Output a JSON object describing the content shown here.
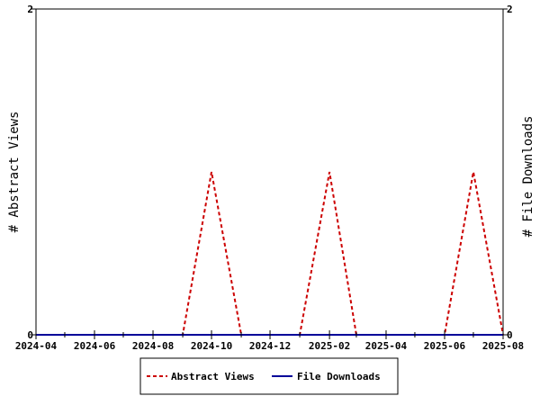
{
  "chart_data": {
    "type": "line",
    "x_axis": {
      "type": "date",
      "range": [
        "2024-04-01",
        "2025-08-01"
      ],
      "tick_labels": [
        "2024-04",
        "2024-06",
        "2024-08",
        "2024-10",
        "2024-12",
        "2025-02",
        "2025-04",
        "2025-06",
        "2025-08"
      ],
      "tick_dates": [
        "2024-04-01",
        "2024-06-01",
        "2024-08-01",
        "2024-10-01",
        "2024-12-01",
        "2025-02-01",
        "2025-04-01",
        "2025-06-01",
        "2025-08-01"
      ],
      "minor_tick_dates": [
        "2024-05-01",
        "2024-07-01",
        "2024-09-01",
        "2024-11-01",
        "2025-01-01",
        "2025-03-01",
        "2025-05-01",
        "2025-07-01"
      ]
    },
    "y_left": {
      "label": "# Abstract Views",
      "range": [
        0,
        2
      ],
      "tick_labels": [
        "0",
        "2"
      ]
    },
    "y_right": {
      "label": "# File Downloads",
      "range": [
        0,
        2
      ],
      "tick_labels": [
        "0",
        "2"
      ]
    },
    "grid": false,
    "legend": {
      "position": "bottom"
    },
    "x": [
      "2024-04-01",
      "2024-05-01",
      "2024-06-01",
      "2024-07-01",
      "2024-08-01",
      "2024-09-01",
      "2024-10-01",
      "2024-11-01",
      "2024-12-01",
      "2025-01-01",
      "2025-02-01",
      "2025-03-01",
      "2025-04-01",
      "2025-05-01",
      "2025-06-01",
      "2025-07-01",
      "2025-08-01"
    ],
    "series": [
      {
        "name": "Abstract Views",
        "color": "#cc0000",
        "style": "dashed",
        "axis": "left",
        "values": [
          0,
          0,
          0,
          0,
          0,
          0,
          1,
          0,
          0,
          0,
          1,
          0,
          0,
          0,
          0,
          1,
          0
        ]
      },
      {
        "name": "File Downloads",
        "color": "#000099",
        "style": "solid",
        "axis": "right",
        "values": [
          0,
          0,
          0,
          0,
          0,
          0,
          0,
          0,
          0,
          0,
          0,
          0,
          0,
          0,
          0,
          0,
          0
        ]
      }
    ]
  }
}
